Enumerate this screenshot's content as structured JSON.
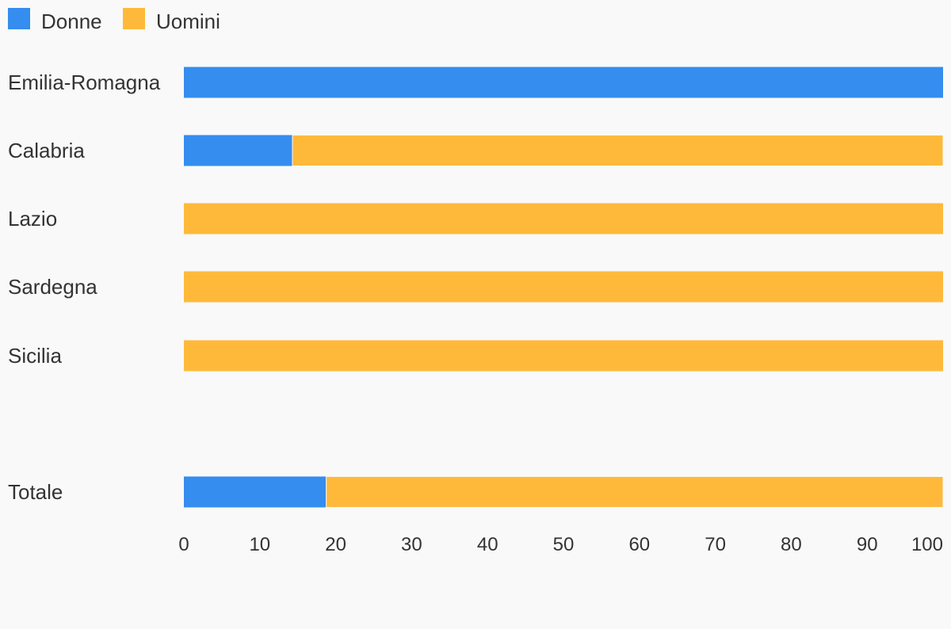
{
  "chart_data": {
    "type": "bar",
    "orientation": "horizontal",
    "stacked": true,
    "legend": {
      "placement": "top-left",
      "entries": [
        {
          "label": "Donne",
          "color": "#348def"
        },
        {
          "label": "Uomini",
          "color": "#ffb93a"
        }
      ]
    },
    "categories": [
      "Emilia-Romagna",
      "Calabria",
      "Lazio",
      "Sardegna",
      "Sicilia",
      "Totale"
    ],
    "series": [
      {
        "name": "Donne",
        "color": "#348def",
        "values": [
          100,
          14.3,
          0,
          0,
          0,
          18.75
        ]
      },
      {
        "name": "Uomini",
        "color": "#ffb93a",
        "values": [
          0,
          85.7,
          100,
          100,
          100,
          81.25
        ]
      }
    ],
    "xaxis": {
      "range": [
        0,
        100
      ],
      "ticks": [
        "0",
        "10",
        "20",
        "30",
        "40",
        "50",
        "60",
        "70",
        "80",
        "90",
        "100"
      ]
    },
    "grid": false,
    "title": "",
    "xlabel": "",
    "ylabel": ""
  }
}
